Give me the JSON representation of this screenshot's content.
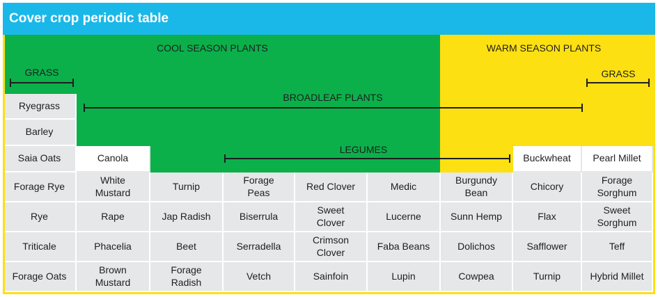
{
  "title": "Cover crop periodic table",
  "section_labels": {
    "cool": "COOL SEASON PLANTS",
    "warm": "WARM SEASON PLANTS",
    "grass_left": "GRASS",
    "grass_right": "GRASS",
    "broadleaf": "BROADLEAF PLANTS",
    "legumes": "LEGUMES"
  },
  "colors": {
    "header": "#1ab8e8",
    "cool": "#0bb04b",
    "warm": "#fde012",
    "cell": "#e6e7e8"
  },
  "columns": [
    {
      "cells": [
        "Ryegrass",
        "Barley",
        "Saia Oats",
        "Forage Rye",
        "Rye",
        "Triticale",
        "Forage Oats"
      ]
    },
    {
      "cells": [
        "Canola",
        "White\nMustard",
        "Rape",
        "Phacelia",
        "Brown\nMustard"
      ]
    },
    {
      "cells": [
        "Turnip",
        "Jap Radish",
        "Beet",
        "Forage\nRadish"
      ]
    },
    {
      "cells": [
        "Forage\nPeas",
        "Biserrula",
        "Serradella",
        "Vetch"
      ]
    },
    {
      "cells": [
        "Red Clover",
        "Sweet\nClover",
        "Crimson\nClover",
        "Sainfoin"
      ]
    },
    {
      "cells": [
        "Medic",
        "Lucerne",
        "Faba Beans",
        "Lupin"
      ]
    },
    {
      "cells": [
        "Burgundy\nBean",
        "Sunn Hemp",
        "Dolichos",
        "Cowpea"
      ]
    },
    {
      "cells": [
        "Buckwheat",
        "Chicory",
        "Flax",
        "Safflower",
        "Turnip"
      ]
    },
    {
      "cells": [
        "Pearl Millet",
        "Forage\nSorghum",
        "Sweet\nSorghum",
        "Teff",
        "Hybrid Millet"
      ]
    }
  ]
}
